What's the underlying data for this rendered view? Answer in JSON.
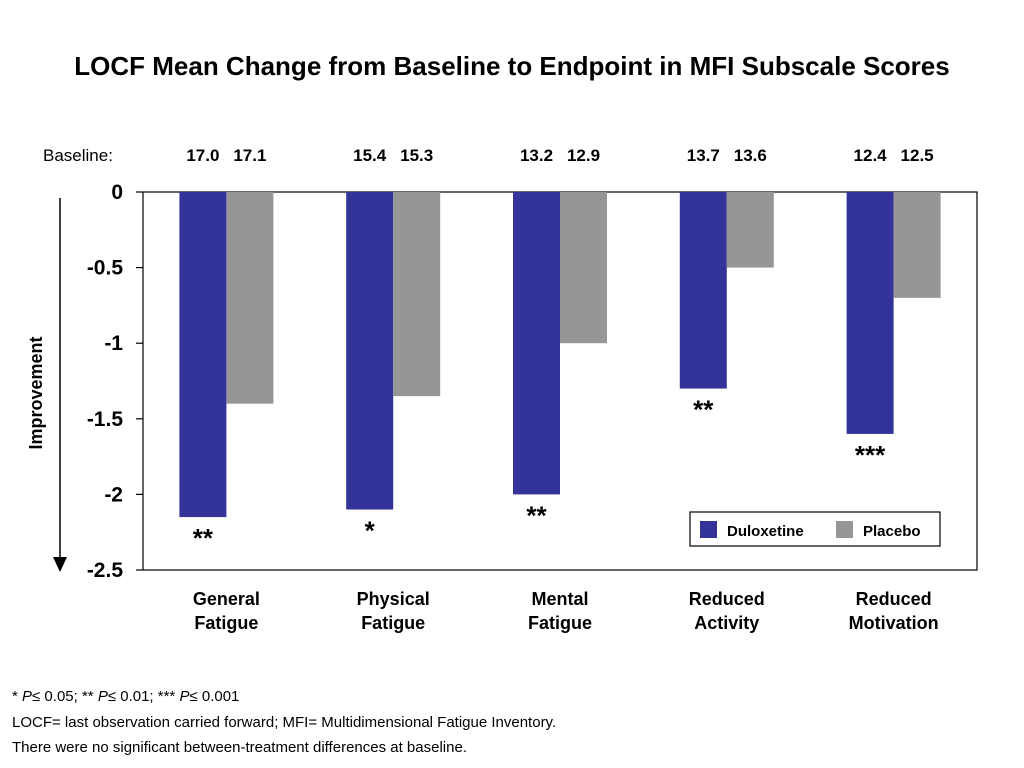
{
  "chart_data": {
    "type": "bar",
    "title": "LOCF Mean Change from Baseline to Endpoint in MFI Subscale Scores",
    "ylabel": "Improvement",
    "ylim": [
      -2.5,
      0
    ],
    "yticks": [
      {
        "value": 0,
        "label": "0"
      },
      {
        "value": -0.5,
        "label": "-0.5"
      },
      {
        "value": -1,
        "label": "-1"
      },
      {
        "value": -1.5,
        "label": "-1.5"
      },
      {
        "value": -2,
        "label": "-2"
      },
      {
        "value": -2.5,
        "label": "-2.5"
      }
    ],
    "categories": [
      {
        "line1": "General",
        "line2": "Fatigue"
      },
      {
        "line1": "Physical",
        "line2": "Fatigue"
      },
      {
        "line1": "Mental",
        "line2": "Fatigue"
      },
      {
        "line1": "Reduced",
        "line2": "Activity"
      },
      {
        "line1": "Reduced",
        "line2": "Motivation"
      }
    ],
    "series": [
      {
        "name": "Duloxetine",
        "color": "#333399",
        "values": [
          -2.15,
          -2.1,
          -2.0,
          -1.3,
          -1.6
        ]
      },
      {
        "name": "Placebo",
        "color": "#969696",
        "values": [
          -1.4,
          -1.35,
          -1.0,
          -0.5,
          -0.7
        ]
      }
    ],
    "baseline": {
      "label": "Baseline:",
      "values": [
        [
          "17.0",
          "17.1"
        ],
        [
          "15.4",
          "15.3"
        ],
        [
          "13.2",
          "12.9"
        ],
        [
          "13.7",
          "13.6"
        ],
        [
          "12.4",
          "12.5"
        ]
      ]
    },
    "significance": [
      "**",
      "*",
      "**",
      "**",
      "***"
    ],
    "legend_position": "bottom-right",
    "grid": false
  },
  "footnotes": {
    "line1": {
      "s1": "* ",
      "p": "P",
      "s2": "≤ 0.05; ** ",
      "s3": "≤ 0.01; *** ",
      "s4": "≤ 0.001"
    },
    "line2": "LOCF= last observation carried forward; MFI= Multidimensional Fatigue Inventory.",
    "line3": "There were no significant between-treatment differences at baseline."
  }
}
